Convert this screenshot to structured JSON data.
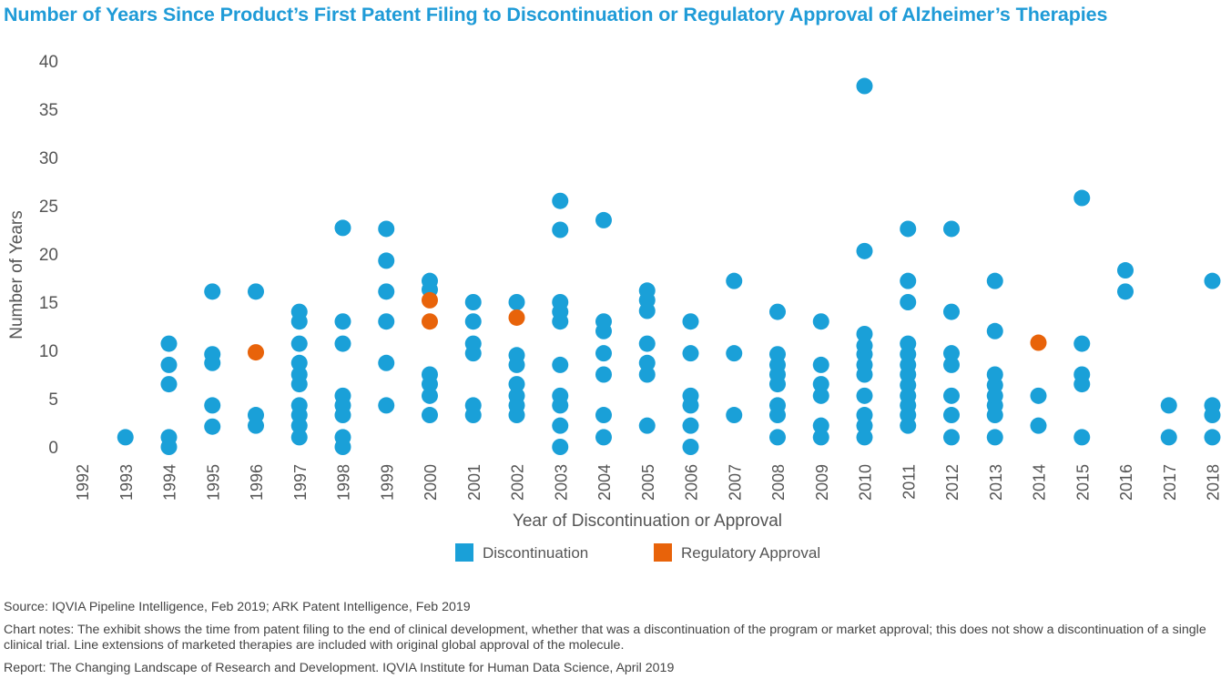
{
  "title": "Number of Years Since Product’s First Patent Filing to Discontinuation or Regulatory Approval of Alzheimer’s Therapies",
  "chart_data": {
    "type": "scatter",
    "title": "Number of Years Since Product’s First Patent Filing to Discontinuation or Regulatory Approval of Alzheimer’s Therapies",
    "xlabel": "Year of Discontinuation or Approval",
    "ylabel": "Number of Years",
    "ylim": [
      0,
      40
    ],
    "yticks": [
      "0",
      "5",
      "10",
      "15",
      "20",
      "25",
      "30",
      "35",
      "40"
    ],
    "categories": [
      "1992",
      "1993",
      "1994",
      "1995",
      "1996",
      "1997",
      "1998",
      "1999",
      "2000",
      "2001",
      "2002",
      "2003",
      "2004",
      "2005",
      "2006",
      "2007",
      "2008",
      "2009",
      "2010",
      "2011",
      "2012",
      "2013",
      "2014",
      "2015",
      "2016",
      "2017",
      "2018"
    ],
    "legend_position": "bottom",
    "colors": {
      "Discontinuation": "#1aa0d8",
      "Regulatory Approval": "#e8630a"
    },
    "series": [
      {
        "name": "Discontinuation",
        "points": {
          "1993": [
            1
          ],
          "1994": [
            0,
            1,
            6.5,
            8.5,
            10.7
          ],
          "1995": [
            2.1,
            4.3,
            8.7,
            9.6,
            16.1
          ],
          "1996": [
            2.2,
            3.3,
            16.1
          ],
          "1997": [
            1,
            2.2,
            3.3,
            4.3,
            6.5,
            7.5,
            8.7,
            10.7,
            13,
            14
          ],
          "1998": [
            0,
            1,
            3.3,
            4.3,
            5.3,
            10.7,
            13,
            22.7
          ],
          "1999": [
            4.3,
            8.7,
            13,
            16.1,
            19.3,
            22.6
          ],
          "2000": [
            3.3,
            5.3,
            6.5,
            7.5,
            16.3,
            17.2
          ],
          "2001": [
            3.3,
            4.3,
            9.7,
            10.7,
            13,
            15
          ],
          "2002": [
            3.3,
            4.3,
            5.3,
            6.5,
            8.5,
            9.5,
            15
          ],
          "2003": [
            0,
            2.2,
            4.3,
            5.3,
            8.5,
            13,
            14,
            15,
            22.5,
            25.5
          ],
          "2004": [
            1,
            3.3,
            7.5,
            9.7,
            12,
            13,
            23.5
          ],
          "2005": [
            2.2,
            7.5,
            8.7,
            10.7,
            14.1,
            15.2,
            16.2
          ],
          "2006": [
            0,
            2.2,
            4.3,
            5.3,
            9.7,
            13
          ],
          "2007": [
            3.3,
            9.7,
            17.2
          ],
          "2008": [
            1,
            3.3,
            4.3,
            6.5,
            7.5,
            8.5,
            9.6,
            14
          ],
          "2009": [
            1,
            2.2,
            5.3,
            6.5,
            8.5,
            13
          ],
          "2010": [
            1,
            2.2,
            3.3,
            5.3,
            7.5,
            8.5,
            9.6,
            10.5,
            11.7,
            20.3,
            37.4
          ],
          "2011": [
            2.2,
            3.3,
            4.3,
            5.3,
            6.4,
            7.5,
            8.5,
            9.6,
            10.7,
            15,
            17.2,
            22.6
          ],
          "2012": [
            1,
            3.3,
            5.3,
            8.5,
            9.7,
            14,
            22.6
          ],
          "2013": [
            1,
            3.3,
            4.3,
            5.3,
            6.4,
            7.5,
            12,
            17.2
          ],
          "2014": [
            2.2,
            5.3
          ],
          "2015": [
            1,
            6.5,
            7.5,
            10.7,
            25.8
          ],
          "2016": [
            16.1,
            18.3
          ],
          "2017": [
            1,
            4.3
          ],
          "2018": [
            1,
            3.3,
            4.3,
            17.2
          ]
        }
      },
      {
        "name": "Regulatory Approval",
        "points": {
          "1996": [
            9.8
          ],
          "2000": [
            13,
            15.2
          ],
          "2002": [
            13.4
          ],
          "2014": [
            10.8
          ]
        }
      }
    ]
  },
  "footnotes": {
    "source": "Source: IQVIA Pipeline Intelligence, Feb 2019; ARK Patent Intelligence, Feb 2019",
    "notes": "Chart notes: The exhibit shows the time from patent filing to the end of clinical development, whether that was a discontinuation of the program or market approval; this does not show a discontinuation of a single clinical trial. Line extensions of marketed therapies are included with original global approval of the molecule.",
    "report": "Report: The Changing Landscape of Research and Development. IQVIA Institute for Human Data Science, April 2019"
  }
}
